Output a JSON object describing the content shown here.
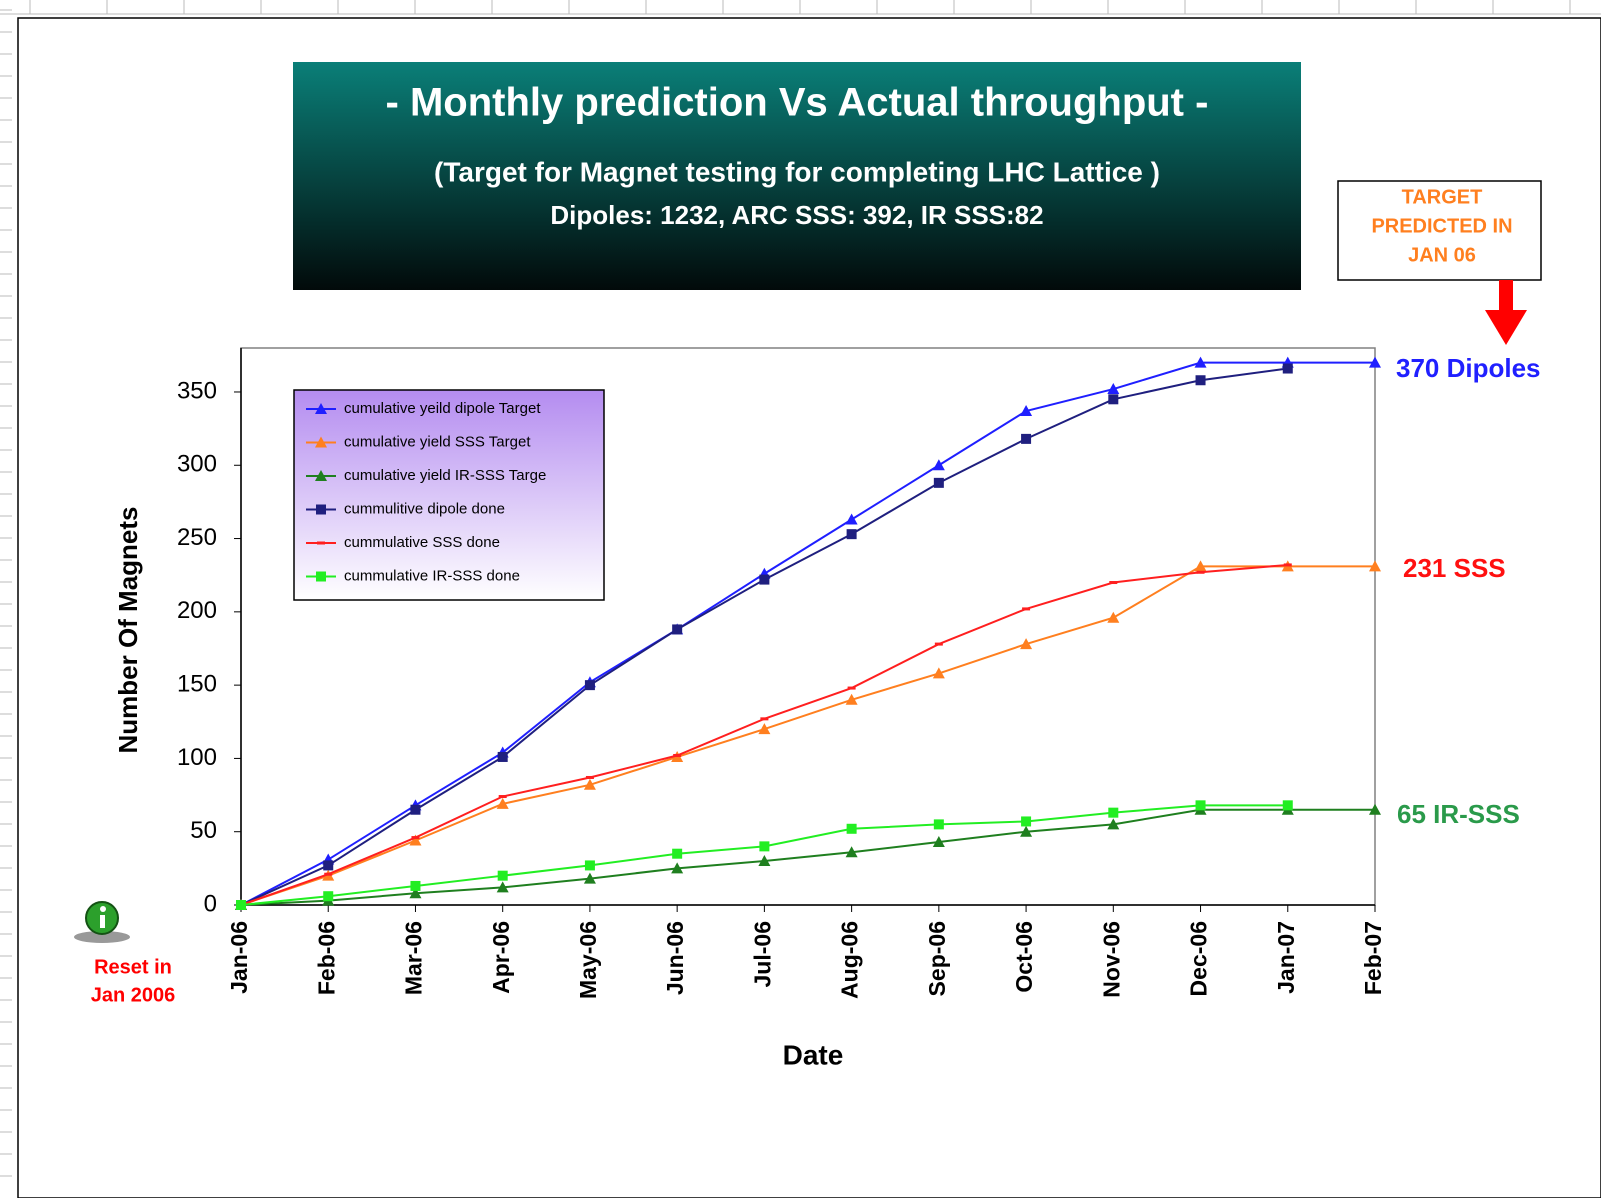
{
  "chart_data": {
    "type": "line",
    "title": "- Monthly prediction Vs Actual throughput -",
    "subtitle": [
      "(Target for Magnet testing for completing LHC Lattice )",
      "Dipoles: 1232, ARC SSS: 392, IR SSS:82"
    ],
    "x_label": "Date",
    "y_label": "Number Of Magnets",
    "categories": [
      "Jan-06",
      "Feb-06",
      "Mar-06",
      "Apr-06",
      "May-06",
      "Jun-06",
      "Jul-06",
      "Aug-06",
      "Sep-06",
      "Oct-06",
      "Nov-06",
      "Dec-06",
      "Jan-07",
      "Feb-07"
    ],
    "ylim": [
      0,
      380
    ],
    "yticks": [
      0,
      50,
      100,
      150,
      200,
      250,
      300,
      350
    ],
    "grid": false,
    "legend": "upper left",
    "series": [
      {
        "name": "cumulative yeild dipole Target",
        "color": "#1f1fff",
        "marker": "triangle",
        "values": [
          0,
          31,
          68,
          104,
          152,
          188,
          226,
          263,
          300,
          337,
          352,
          370,
          370,
          370
        ]
      },
      {
        "name": "cumulative yield SSS Target",
        "color": "#ff7f1f",
        "marker": "triangle",
        "values": [
          0,
          20,
          44,
          69,
          82,
          101,
          120,
          140,
          158,
          178,
          196,
          231,
          231,
          231
        ]
      },
      {
        "name": "cumulative yield IR-SSS Targe",
        "color": "#1f7f1f",
        "marker": "triangle",
        "values": [
          0,
          3,
          8,
          12,
          18,
          25,
          30,
          36,
          43,
          50,
          55,
          65,
          65,
          65
        ]
      },
      {
        "name": "cummulitive dipole done",
        "color": "#1f1f7f",
        "marker": "square",
        "values": [
          0,
          27,
          65,
          101,
          150,
          188,
          222,
          253,
          288,
          318,
          345,
          358,
          366,
          null
        ]
      },
      {
        "name": "cummulative  SSS done",
        "color": "#ff1f1f",
        "marker": "dash",
        "values": [
          0,
          21,
          46,
          74,
          87,
          102,
          127,
          148,
          178,
          202,
          220,
          227,
          232,
          null
        ]
      },
      {
        "name": "cummulative IR-SSS done",
        "color": "#22ee22",
        "marker": "square",
        "values": [
          0,
          6,
          13,
          20,
          27,
          35,
          40,
          52,
          55,
          57,
          63,
          68,
          68,
          null
        ]
      }
    ],
    "annotations": [
      {
        "text": "370 Dipoles",
        "color": "#2020ff"
      },
      {
        "text": "231 SSS",
        "color": "#ff1010"
      },
      {
        "text": "65 IR-SSS",
        "color": "#2a9a4a"
      }
    ],
    "target_note": [
      "TARGET",
      "PREDICTED IN",
      "JAN 06"
    ],
    "reset_note": [
      "Reset in",
      "Jan  2006"
    ]
  }
}
